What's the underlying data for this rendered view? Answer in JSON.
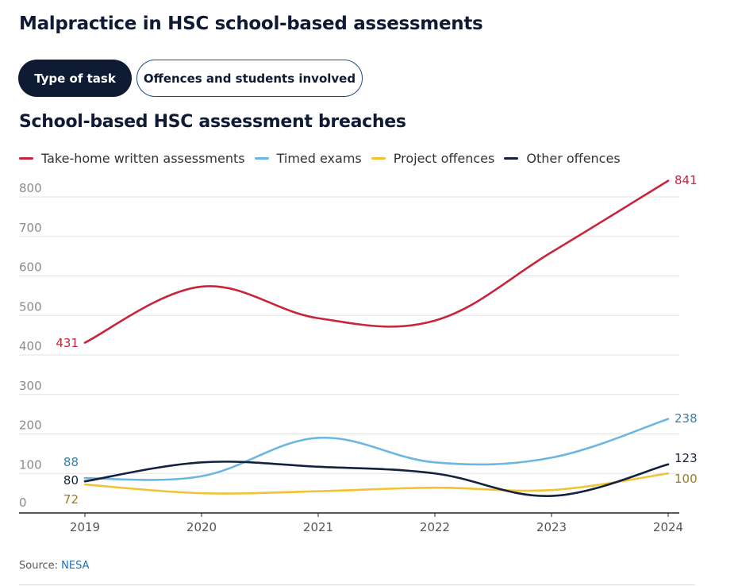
{
  "page_title": "Malpractice in HSC school-based assessments",
  "tabs": [
    {
      "label": "Type of task",
      "active": true
    },
    {
      "label": "Offences and students involved",
      "active": false
    }
  ],
  "colors": {
    "red": "#c8243b",
    "blue": "#6cb7e2",
    "yellow": "#f1c232",
    "navy": "#14213d",
    "blue_label": "#3a7fae",
    "yellow_label": "#9a7b1f"
  },
  "chart_data": {
    "type": "line",
    "title": "School-based HSC assessment breaches",
    "xlabel": "",
    "ylabel": "",
    "x": [
      "2019",
      "2020",
      "2021",
      "2022",
      "2023",
      "2024"
    ],
    "ylim": [
      0,
      800
    ],
    "yticks": [
      0,
      100,
      200,
      300,
      400,
      500,
      600,
      700,
      800
    ],
    "grid": true,
    "legend": "top",
    "series": [
      {
        "name": "Take-home written assessments",
        "color": "#c8243b",
        "label_color": "#c8243b",
        "values": [
          431,
          573,
          493,
          487,
          660,
          841
        ],
        "start_label": "431",
        "end_label": "841"
      },
      {
        "name": "Timed exams",
        "color": "#6cb7e2",
        "label_color": "#3a7fae",
        "values": [
          88,
          93,
          190,
          128,
          140,
          238
        ],
        "start_label": "88",
        "end_label": "238"
      },
      {
        "name": "Project offences",
        "color": "#f1c232",
        "label_color": "#9a7b1f",
        "values": [
          72,
          50,
          55,
          64,
          58,
          100
        ],
        "start_label": "72",
        "end_label": "100"
      },
      {
        "name": "Other offences",
        "color": "#14213d",
        "label_color": "#14213d",
        "values": [
          80,
          128,
          117,
          100,
          43,
          123
        ],
        "start_label": "80",
        "end_label": "123"
      }
    ]
  },
  "source": {
    "prefix": "Source: ",
    "link_text": "NESA"
  }
}
